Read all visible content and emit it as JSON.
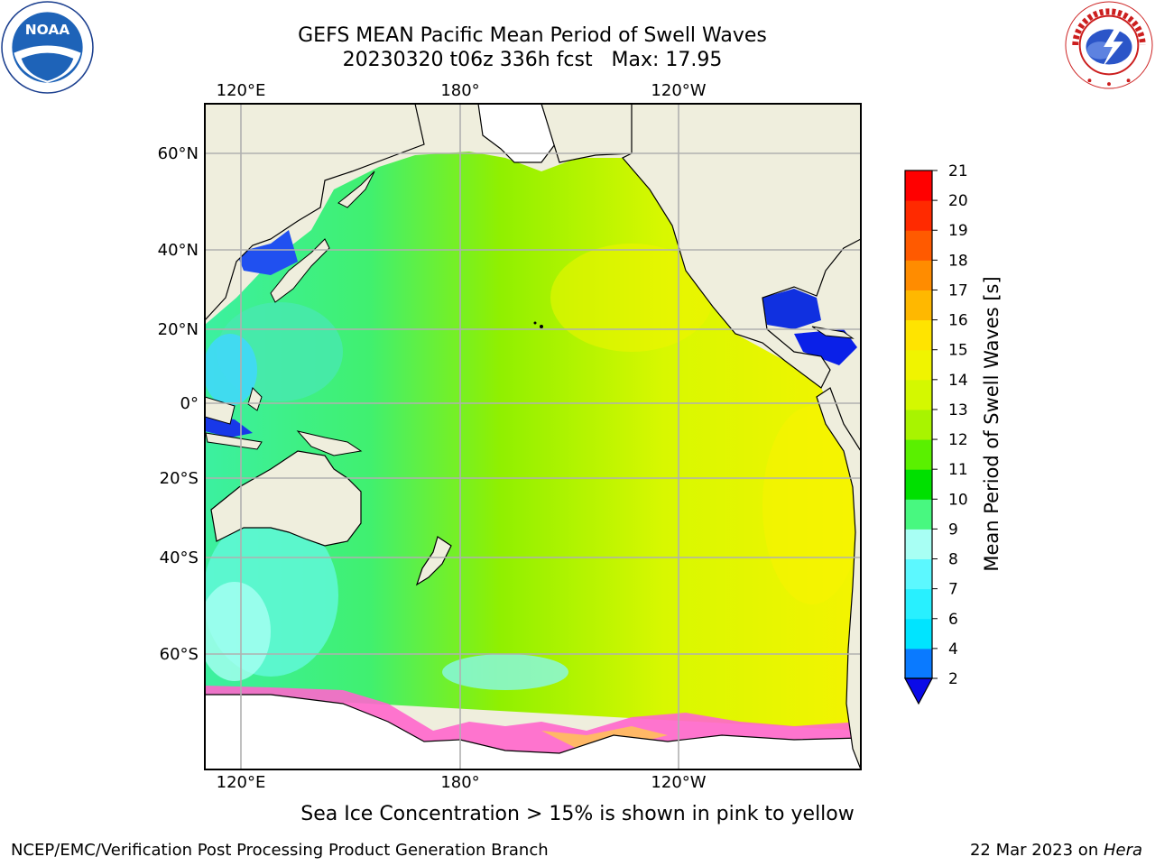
{
  "header": {
    "title_line1": "GEFS MEAN Pacific Mean Period of Swell Waves",
    "title_line2": "20230320 t06z 336h fcst   Max: 17.95"
  },
  "logos": {
    "noaa": {
      "text": "NOAA",
      "ring_text": "NATIONAL OCEANIC AND ATMOSPHERIC ADMINISTRATION · U.S. DEPARTMENT OF COMMERCE"
    },
    "nws": {
      "ring_text": "NATIONAL WEATHER SERVICE"
    }
  },
  "map": {
    "lon_labels_top": [
      "120°E",
      "180°",
      "120°W"
    ],
    "lon_labels_bottom": [
      "120°E",
      "180°",
      "120°W"
    ],
    "lat_labels": [
      "60°N",
      "40°N",
      "20°N",
      "0°",
      "20°S",
      "40°S",
      "60°S"
    ],
    "colors": {
      "land": "#efeedd",
      "ice": "#ff66cc",
      "grid": "#b0b0b0"
    }
  },
  "colorbar": {
    "label": "Mean Period of Swell Waves [s]",
    "ticks": [
      "2",
      "4",
      "6",
      "7",
      "8",
      "9",
      "10",
      "11",
      "12",
      "13",
      "14",
      "15",
      "16",
      "17",
      "18",
      "19",
      "20",
      "21"
    ],
    "colors": [
      "#0a0ae8",
      "#0a7aff",
      "#00e4ff",
      "#28f0ff",
      "#5cf8ff",
      "#a8fff4",
      "#48f880",
      "#00e000",
      "#5af000",
      "#a8f400",
      "#d4f800",
      "#f0f400",
      "#ffe400",
      "#ffb800",
      "#ff8c00",
      "#ff5a00",
      "#ff2a00",
      "#ff0000"
    ]
  },
  "footer": {
    "ice_note": "Sea Ice Concentration > 15% is shown in pink to yellow",
    "left": "NCEP/EMC/Verification Post Processing Product Generation Branch",
    "right_date": "22 Mar 2023 on ",
    "right_host": "Hera"
  }
}
